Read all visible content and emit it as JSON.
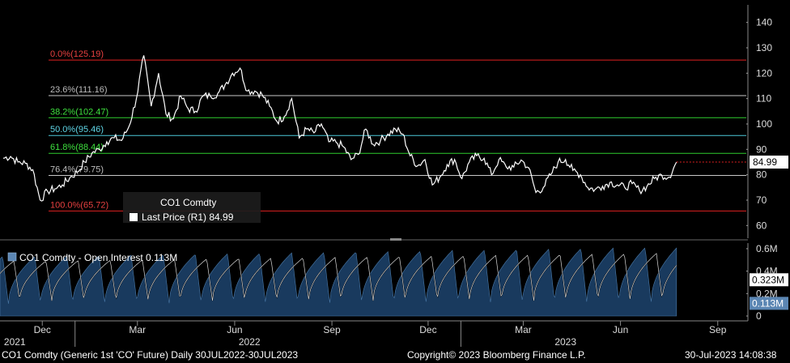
{
  "chart_data": [
    {
      "type": "line",
      "title": "",
      "ticker_box": {
        "title": "CO1 Comdty",
        "legend_text": "Last Price  (R1) 84.99"
      },
      "ylim": [
        55,
        145
      ],
      "y_ticks": [
        60,
        70,
        80,
        90,
        100,
        110,
        120,
        130,
        140
      ],
      "last_price": 84.99,
      "last_price_label": "84.99",
      "fib_levels": [
        {
          "label": "0.0%(125.19)",
          "value": 125.19,
          "color": "#e02020",
          "label_color": "#e84040"
        },
        {
          "label": "23.6%(111.16)",
          "value": 111.16,
          "color": "#c8c8c8",
          "label_color": "#bdbdbd"
        },
        {
          "label": "38.2%(102.47)",
          "value": 102.47,
          "color": "#2ecc2e",
          "label_color": "#3ee03e"
        },
        {
          "label": "50.0%(95.46)",
          "value": 95.46,
          "color": "#4cc8d8",
          "label_color": "#5fd6e6"
        },
        {
          "label": "61.8%(88.44)",
          "value": 88.44,
          "color": "#2ecc2e",
          "label_color": "#3ee03e"
        },
        {
          "label": "76.4%(79.75)",
          "value": 79.75,
          "color": "#c8c8c8",
          "label_color": "#bdbdbd"
        },
        {
          "label": "100.0%(65.72)",
          "value": 65.72,
          "color": "#e02020",
          "label_color": "#e84040"
        }
      ],
      "price_series": [
        [
          "2021-10-25",
          86.5
        ],
        [
          "2021-11-01",
          87.2
        ],
        [
          "2021-11-08",
          85.0
        ],
        [
          "2021-11-15",
          84.5
        ],
        [
          "2021-11-22",
          82.0
        ],
        [
          "2021-11-29",
          70.0
        ],
        [
          "2021-12-06",
          73.5
        ],
        [
          "2021-12-13",
          74.5
        ],
        [
          "2021-12-20",
          76.0
        ],
        [
          "2021-12-27",
          78.8
        ],
        [
          "2022-01-03",
          81.0
        ],
        [
          "2022-01-10",
          85.0
        ],
        [
          "2022-01-17",
          88.5
        ],
        [
          "2022-01-24",
          90.0
        ],
        [
          "2022-01-31",
          93.0
        ],
        [
          "2022-02-07",
          94.5
        ],
        [
          "2022-02-14",
          93.5
        ],
        [
          "2022-02-21",
          99.0
        ],
        [
          "2022-02-28",
          110.0
        ],
        [
          "2022-03-07",
          127.0
        ],
        [
          "2022-03-14",
          107.0
        ],
        [
          "2022-03-21",
          120.0
        ],
        [
          "2022-03-28",
          104.0
        ],
        [
          "2022-04-04",
          102.0
        ],
        [
          "2022-04-11",
          111.0
        ],
        [
          "2022-04-18",
          106.0
        ],
        [
          "2022-04-25",
          105.0
        ],
        [
          "2022-05-02",
          111.0
        ],
        [
          "2022-05-09",
          111.0
        ],
        [
          "2022-05-16",
          112.0
        ],
        [
          "2022-05-23",
          115.5
        ],
        [
          "2022-05-30",
          120.0
        ],
        [
          "2022-06-06",
          122.0
        ],
        [
          "2022-06-13",
          113.0
        ],
        [
          "2022-06-20",
          113.0
        ],
        [
          "2022-06-27",
          111.5
        ],
        [
          "2022-07-04",
          107.0
        ],
        [
          "2022-07-11",
          101.0
        ],
        [
          "2022-07-18",
          103.0
        ],
        [
          "2022-07-25",
          110.0
        ],
        [
          "2022-08-01",
          94.5
        ],
        [
          "2022-08-08",
          98.0
        ],
        [
          "2022-08-15",
          96.5
        ],
        [
          "2022-08-22",
          100.0
        ],
        [
          "2022-08-29",
          93.0
        ],
        [
          "2022-09-05",
          92.8
        ],
        [
          "2022-09-12",
          91.0
        ],
        [
          "2022-09-19",
          86.0
        ],
        [
          "2022-09-26",
          88.0
        ],
        [
          "2022-10-03",
          98.0
        ],
        [
          "2022-10-10",
          92.0
        ],
        [
          "2022-10-17",
          93.5
        ],
        [
          "2022-10-24",
          96.0
        ],
        [
          "2022-10-31",
          98.0
        ],
        [
          "2022-11-07",
          96.0
        ],
        [
          "2022-11-14",
          87.5
        ],
        [
          "2022-11-21",
          83.5
        ],
        [
          "2022-11-28",
          86.0
        ],
        [
          "2022-12-05",
          76.0
        ],
        [
          "2022-12-12",
          79.0
        ],
        [
          "2022-12-19",
          84.0
        ],
        [
          "2022-12-26",
          86.0
        ],
        [
          "2023-01-02",
          78.5
        ],
        [
          "2023-01-09",
          85.0
        ],
        [
          "2023-01-16",
          87.5
        ],
        [
          "2023-01-23",
          86.5
        ],
        [
          "2023-01-30",
          80.0
        ],
        [
          "2023-02-06",
          86.0
        ],
        [
          "2023-02-13",
          83.0
        ],
        [
          "2023-02-20",
          83.0
        ],
        [
          "2023-02-27",
          85.8
        ],
        [
          "2023-03-06",
          82.8
        ],
        [
          "2023-03-13",
          73.0
        ],
        [
          "2023-03-20",
          75.0
        ],
        [
          "2023-03-27",
          80.0
        ],
        [
          "2023-04-03",
          85.0
        ],
        [
          "2023-04-10",
          86.0
        ],
        [
          "2023-04-17",
          81.7
        ],
        [
          "2023-04-24",
          80.0
        ],
        [
          "2023-05-01",
          75.0
        ],
        [
          "2023-05-08",
          74.2
        ],
        [
          "2023-05-15",
          75.5
        ],
        [
          "2023-05-22",
          77.0
        ],
        [
          "2023-05-29",
          76.0
        ],
        [
          "2023-06-05",
          75.0
        ],
        [
          "2023-06-12",
          76.5
        ],
        [
          "2023-06-19",
          73.8
        ],
        [
          "2023-06-26",
          75.4
        ],
        [
          "2023-07-03",
          78.5
        ],
        [
          "2023-07-10",
          79.9
        ],
        [
          "2023-07-17",
          79.1
        ],
        [
          "2023-07-24",
          84.99
        ]
      ]
    },
    {
      "type": "area",
      "title": "CO1 Comdty - Open Interest 0.113M",
      "ylim": [
        0,
        0.65
      ],
      "y_ticks": [
        0,
        0.2,
        0.4,
        0.6
      ],
      "y_tick_labels": [
        "0",
        "0.2M",
        "0.4M",
        "0.6M"
      ],
      "oi_cycle": {
        "start": "2021-10-30",
        "period_days": 30.4,
        "min": 0.11,
        "rise": 0.42
      },
      "oi_peak_growth": 0.08,
      "line_values": {
        "start": 0.37,
        "end": 0.323
      },
      "line_label": "0.323M",
      "area_label": "0.113M",
      "area_color": "#193a5e",
      "line_color": "#ffffff"
    }
  ],
  "x_axis": {
    "date_range": [
      "2021-10-22",
      "2023-09-28"
    ],
    "months": [
      {
        "label": "Dec",
        "date": "2021-12-01"
      },
      {
        "label": "Mar",
        "date": "2022-03-01"
      },
      {
        "label": "Jun",
        "date": "2022-06-01"
      },
      {
        "label": "Sep",
        "date": "2022-09-01"
      },
      {
        "label": "Dec",
        "date": "2022-12-01"
      },
      {
        "label": "Mar",
        "date": "2023-03-01"
      },
      {
        "label": "Jun",
        "date": "2023-06-01"
      },
      {
        "label": "Sep",
        "date": "2023-09-01"
      }
    ],
    "years": [
      {
        "label": "2021",
        "date": "2021-11-05"
      },
      {
        "label": "2022",
        "date": "2022-06-15"
      },
      {
        "label": "2023",
        "date": "2023-04-10"
      }
    ]
  },
  "footer": {
    "left": "CO1 Comdty (Generic 1st 'CO' Future)  Daily 30JUL2022-30JUL2023",
    "center": "Copyright© 2023 Bloomberg Finance L.P.",
    "right": "30-Jul-2023  14:08:38"
  }
}
